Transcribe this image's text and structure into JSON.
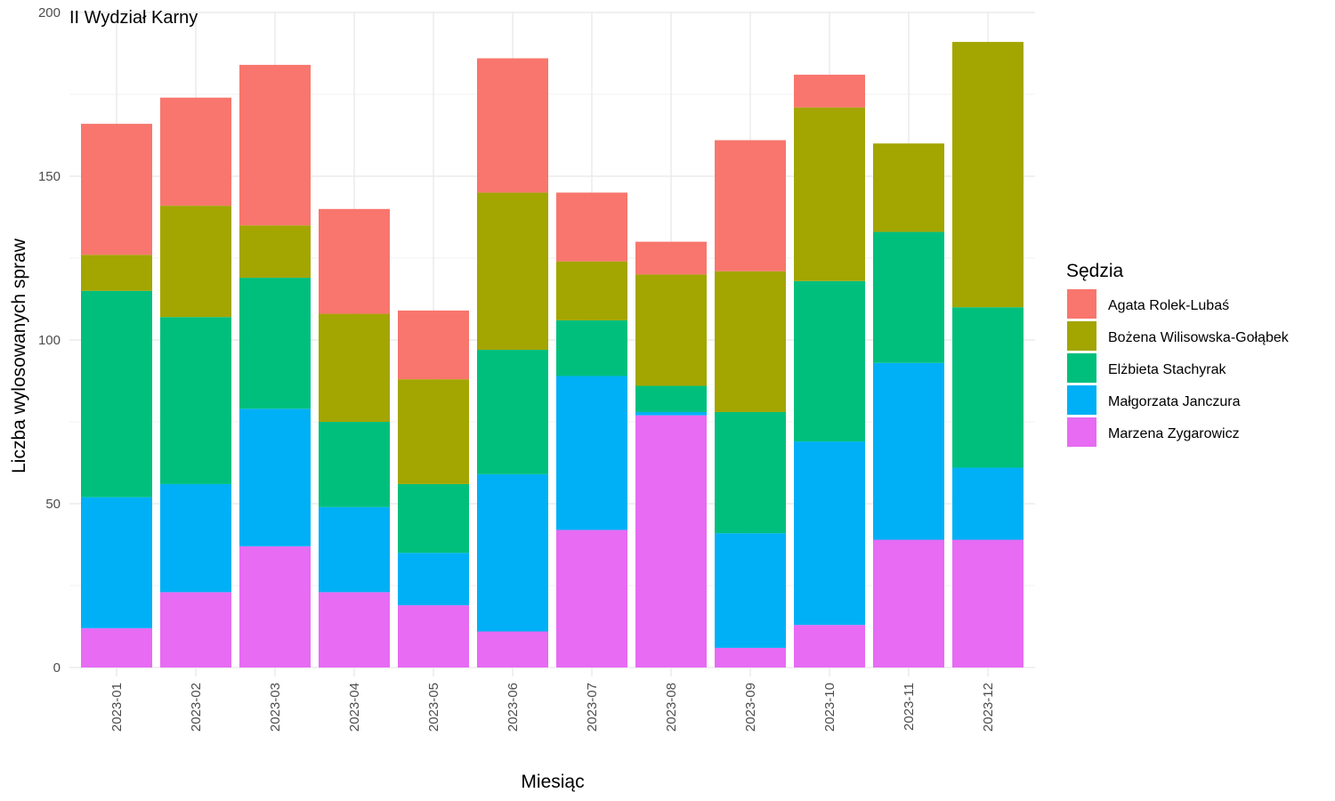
{
  "chart_data": {
    "type": "bar",
    "stacked": true,
    "title": "II Wydział Karny",
    "xlabel": "Miesiąc",
    "ylabel": "Liczba wylosowanych spraw",
    "ylim": [
      0,
      200
    ],
    "yticks": [
      0,
      50,
      100,
      150,
      200
    ],
    "grid": true,
    "legend_position": "right",
    "legend_title": "Sędzia",
    "categories": [
      "2023-01",
      "2023-02",
      "2023-03",
      "2023-04",
      "2023-05",
      "2023-06",
      "2023-07",
      "2023-08",
      "2023-09",
      "2023-10",
      "2023-11",
      "2023-12"
    ],
    "series": [
      {
        "name": "Marzena Zygarowicz",
        "color": "#E76BF3",
        "values": [
          12,
          23,
          37,
          23,
          19,
          11,
          42,
          77,
          6,
          13,
          39,
          39
        ]
      },
      {
        "name": "Małgorzata Janczura",
        "color": "#00B0F6",
        "values": [
          40,
          33,
          42,
          26,
          16,
          48,
          47,
          1,
          35,
          56,
          54,
          22
        ]
      },
      {
        "name": "Elżbieta Stachyrak",
        "color": "#00BF7D",
        "values": [
          63,
          51,
          40,
          26,
          21,
          38,
          17,
          8,
          37,
          49,
          40,
          49
        ]
      },
      {
        "name": "Bożena Wilisowska-Gołąbek",
        "color": "#A3A500",
        "values": [
          11,
          34,
          16,
          33,
          32,
          48,
          18,
          34,
          43,
          53,
          27,
          81
        ]
      },
      {
        "name": "Agata Rolek-Lubaś",
        "color": "#F8766D",
        "values": [
          40,
          33,
          49,
          32,
          21,
          41,
          21,
          10,
          40,
          10,
          0,
          0
        ]
      }
    ],
    "legend_order": [
      "Agata Rolek-Lubaś",
      "Bożena Wilisowska-Gołąbek",
      "Elżbieta Stachyrak",
      "Małgorzata Janczura",
      "Marzena Zygarowicz"
    ],
    "colors": {
      "grid": "#EBEBEB",
      "tick_text": "#4D4D4D",
      "background": "#FFFFFF"
    }
  }
}
